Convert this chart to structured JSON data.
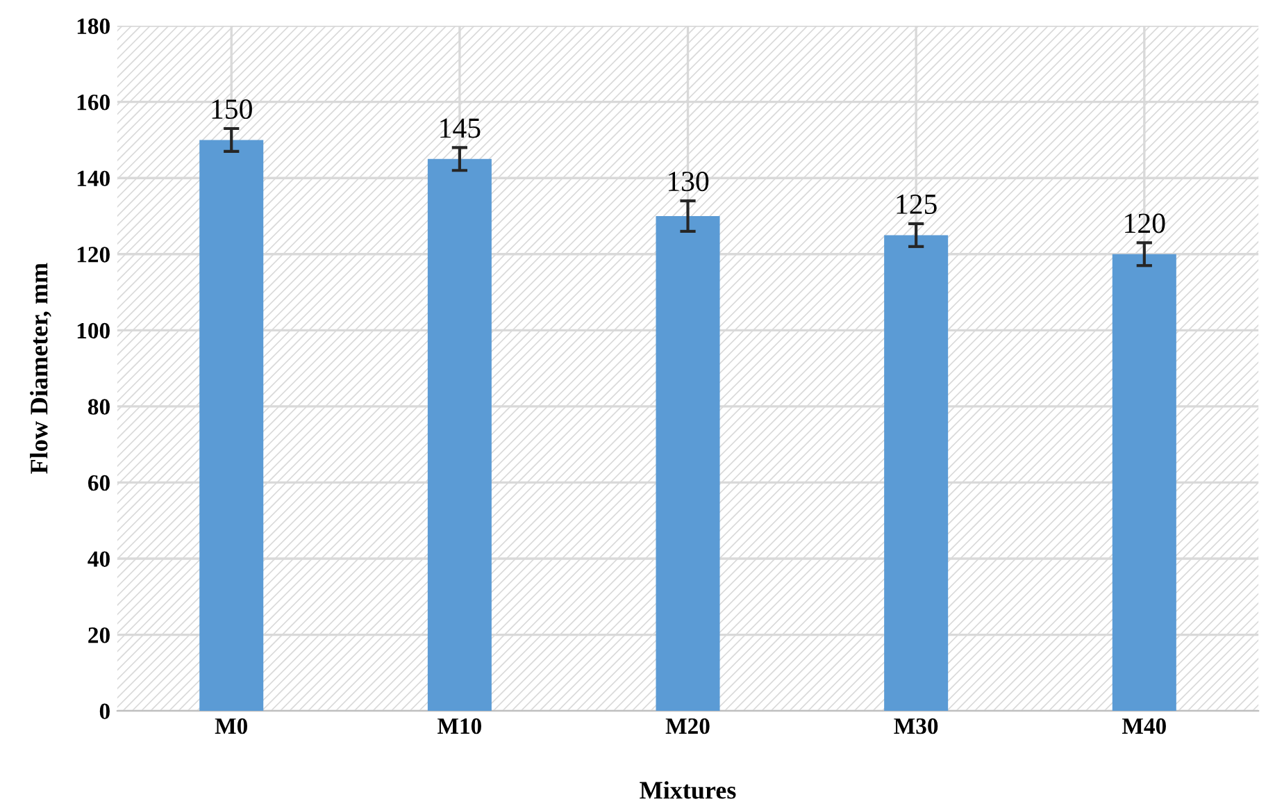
{
  "chart_data": {
    "type": "bar",
    "xlabel": "Mixtures",
    "ylabel": "Flow Diameter, mm",
    "categories": [
      "M0",
      "M10",
      "M20",
      "M30",
      "M40"
    ],
    "values": [
      150,
      145,
      130,
      125,
      120
    ],
    "errors": [
      3,
      3,
      4,
      3,
      3
    ],
    "color": "#5b9bd5",
    "ylim": [
      0,
      180
    ],
    "yticks": [
      0,
      20,
      40,
      60,
      80,
      100,
      120,
      140,
      160,
      180
    ],
    "grid": true,
    "data_labels": true
  }
}
